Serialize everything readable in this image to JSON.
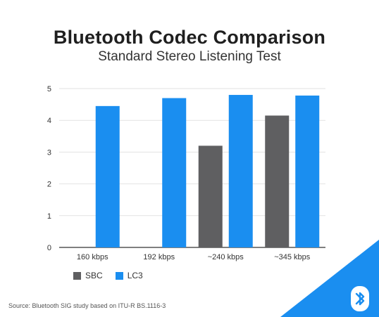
{
  "header": {
    "title": "Bluetooth Codec Comparison",
    "subtitle": "Standard Stereo Listening Test"
  },
  "footer": {
    "source": "Source: Bluetooth SIG study based on ITU-R BS.1116-3"
  },
  "colors": {
    "sbc": "#5f5f61",
    "lc3": "#1a8ef0",
    "corner": "#1a8ef0",
    "grid": "#e2e2e2",
    "axis": "#333333"
  },
  "icons": {
    "corner": "bluetooth-icon"
  },
  "chart_data": {
    "type": "bar",
    "title": "Bluetooth Codec Comparison",
    "subtitle": "Standard Stereo Listening Test",
    "categories": [
      "160 kbps",
      "192 kbps",
      "~240 kbps",
      "~345 kbps"
    ],
    "series": [
      {
        "name": "SBC",
        "values": [
          null,
          null,
          3.2,
          4.15
        ]
      },
      {
        "name": "LC3",
        "values": [
          4.45,
          4.7,
          4.8,
          4.78
        ]
      }
    ],
    "ylim": [
      0,
      5
    ],
    "yticks": [
      0,
      1,
      2,
      3,
      4,
      5
    ],
    "grid": true,
    "legend": "bottom-left"
  }
}
